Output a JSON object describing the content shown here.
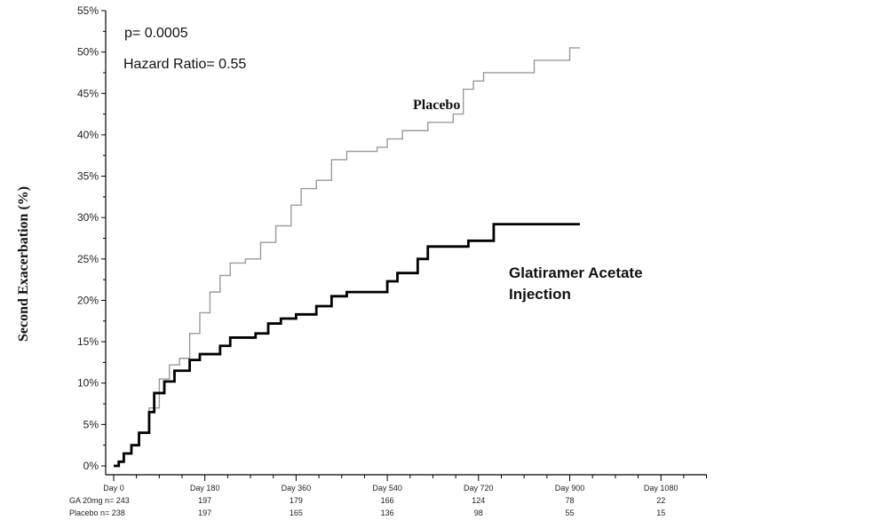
{
  "chart_data": {
    "type": "line",
    "ylabel": "Second Exacerbation (%)",
    "ylim": [
      0,
      55
    ],
    "yticks": [
      "0%",
      "5%",
      "10%",
      "15%",
      "20%",
      "25%",
      "30%",
      "35%",
      "40%",
      "45%",
      "50%",
      "55%"
    ],
    "x_tick_labels": [
      "Day 0",
      "Day 180",
      "Day 360",
      "Day 540",
      "Day 720",
      "Day 900",
      "Day 1080"
    ],
    "annotations": {
      "p_value": "p= 0.0005",
      "hazard_ratio": "Hazard Ratio= 0.55"
    },
    "series": [
      {
        "name": "Placebo",
        "color": "#9a9a9a",
        "points": [
          [
            0,
            0
          ],
          [
            10,
            0.5
          ],
          [
            20,
            1.5
          ],
          [
            35,
            2.5
          ],
          [
            50,
            4
          ],
          [
            70,
            7
          ],
          [
            90,
            10.5
          ],
          [
            110,
            12.2
          ],
          [
            130,
            13
          ],
          [
            150,
            16
          ],
          [
            170,
            18.5
          ],
          [
            190,
            21
          ],
          [
            210,
            23
          ],
          [
            230,
            24.5
          ],
          [
            260,
            25
          ],
          [
            290,
            27
          ],
          [
            320,
            29
          ],
          [
            350,
            31.5
          ],
          [
            370,
            33.5
          ],
          [
            400,
            34.5
          ],
          [
            430,
            37
          ],
          [
            460,
            38
          ],
          [
            520,
            38.5
          ],
          [
            540,
            39.5
          ],
          [
            570,
            40.5
          ],
          [
            620,
            41.5
          ],
          [
            670,
            42.5
          ],
          [
            690,
            45.5
          ],
          [
            710,
            46.5
          ],
          [
            730,
            47.5
          ],
          [
            790,
            47.5
          ],
          [
            830,
            49
          ],
          [
            880,
            49
          ],
          [
            900,
            50.5
          ],
          [
            920,
            50.5
          ]
        ]
      },
      {
        "name": "Glatiramer Acetate Injection",
        "color": "#000000",
        "points": [
          [
            0,
            0
          ],
          [
            10,
            0.5
          ],
          [
            20,
            1.5
          ],
          [
            35,
            2.5
          ],
          [
            50,
            4
          ],
          [
            70,
            6.5
          ],
          [
            80,
            8.8
          ],
          [
            100,
            10.2
          ],
          [
            120,
            11.5
          ],
          [
            150,
            12.8
          ],
          [
            170,
            13.5
          ],
          [
            210,
            14.5
          ],
          [
            230,
            15.5
          ],
          [
            280,
            16
          ],
          [
            305,
            17.2
          ],
          [
            330,
            17.8
          ],
          [
            360,
            18.3
          ],
          [
            400,
            19.3
          ],
          [
            430,
            20.5
          ],
          [
            460,
            21
          ],
          [
            530,
            21
          ],
          [
            540,
            22.3
          ],
          [
            560,
            23.3
          ],
          [
            600,
            25
          ],
          [
            620,
            26.5
          ],
          [
            700,
            27.2
          ],
          [
            750,
            29.2
          ],
          [
            920,
            29.2
          ]
        ]
      }
    ],
    "number_at_risk": {
      "rows": [
        {
          "label": "GA 20mg n= 243",
          "values": [
            "197",
            "179",
            "166",
            "124",
            "78",
            "22"
          ]
        },
        {
          "label": "Placebo n= 238",
          "values": [
            "197",
            "165",
            "136",
            "98",
            "55",
            "15"
          ]
        }
      ]
    }
  }
}
